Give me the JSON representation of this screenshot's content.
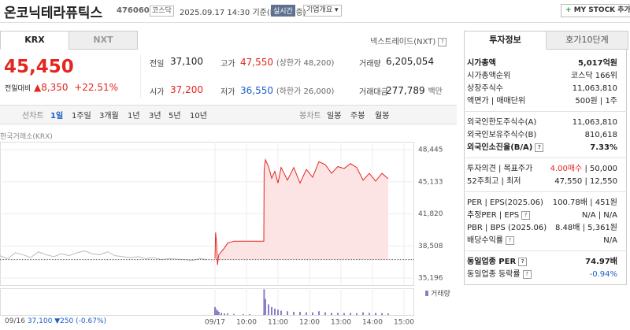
{
  "header": {
    "title": "온코닉테라퓨틱스",
    "code": "476060",
    "market": "코스닥",
    "timestamp": "2025.09.17 14:30",
    "basis": "기준(KRX 장중)",
    "realtime": "실시간",
    "company": "기업개요",
    "mystock": "MY STOCK 추가"
  },
  "market_tabs": [
    "KRX",
    "NXT"
  ],
  "nxt_link": "넥스트레이드(NXT)",
  "price": {
    "current": "45,450",
    "change_label": "전일대비",
    "change": "8,350",
    "rate": "+22.51%"
  },
  "stats": [
    {
      "label": "전일",
      "value": "37,100",
      "color": "plain"
    },
    {
      "label": "고가",
      "value": "47,550",
      "extra": "(상한가 48,200)",
      "color": "up"
    },
    {
      "label": "거래량",
      "value": "6,205,054",
      "color": "plain"
    },
    {
      "label": "시가",
      "value": "37,200",
      "color": "up"
    },
    {
      "label": "저가",
      "value": "36,550",
      "extra": "(하한가 26,000)",
      "color": "down"
    },
    {
      "label": "거래대금",
      "value": "277,789",
      "extra": "백만",
      "color": "plain"
    }
  ],
  "period_tabs": [
    "선차트",
    "1일",
    "1주일",
    "3개월",
    "1년",
    "3년",
    "5년",
    "10년"
  ],
  "candle_tabs": [
    "봉차트",
    "일봉",
    "주봉",
    "월봉"
  ],
  "chart_source": "한국거래소(KRX)",
  "prev_day": {
    "date": "09/16",
    "close": "37,100",
    "change": "250",
    "rate": "(-0.67%)"
  },
  "chart_data": {
    "type": "line",
    "ylim": [
      34465,
      49258
    ],
    "xlim": [
      2.175,
      15.3
    ],
    "yticks": [
      {
        "value": 48445,
        "label": "48,445"
      },
      {
        "value": 45133,
        "label": "45,133"
      },
      {
        "value": 41820,
        "label": "41,820"
      },
      {
        "value": 38508,
        "label": "38,508"
      },
      {
        "value": 35196,
        "label": "35,196"
      }
    ],
    "xticks": [
      {
        "value": 9,
        "label": "09/17"
      },
      {
        "value": 10,
        "label": "10:00"
      },
      {
        "value": 11,
        "label": "11:00"
      },
      {
        "value": 12,
        "label": "12:00"
      },
      {
        "value": 13,
        "label": "13:00"
      },
      {
        "value": 14,
        "label": "14:00"
      },
      {
        "value": 15,
        "label": "15:00"
      }
    ],
    "base_value": 37100,
    "prev_series": {
      "color": "#bbbbbb",
      "values": [
        37500,
        37200,
        37800,
        37600,
        37300,
        37900,
        37600,
        37400,
        37700,
        37500,
        37800,
        38000,
        37700,
        37600,
        37900,
        37500,
        37400,
        37300,
        37400,
        37200,
        37300,
        37100,
        37200,
        37150,
        37100,
        37000,
        37200,
        37100
      ]
    },
    "series": [
      {
        "color": "#e3261f",
        "fill": "#fde4e4",
        "x": [
          9,
          9.02,
          9.05,
          9.08,
          9.12,
          9.2,
          9.3,
          9.4,
          9.6,
          9.9,
          10.1,
          10.55,
          10.56,
          10.6,
          10.7,
          10.8,
          10.9,
          11,
          11.1,
          11.3,
          11.5,
          11.7,
          11.9,
          12.1,
          12.3,
          12.5,
          12.7,
          12.9,
          13.1,
          13.3,
          13.5,
          13.7,
          13.9,
          14.1,
          14.3,
          14.5
        ],
        "values": [
          37200,
          39900,
          38800,
          36550,
          37600,
          37900,
          38300,
          38800,
          39000,
          39000,
          39000,
          39000,
          46300,
          47400,
          46700,
          45500,
          46200,
          45000,
          46600,
          45300,
          46600,
          45000,
          46400,
          45600,
          47200,
          46900,
          46000,
          46700,
          46500,
          47000,
          46600,
          45300,
          46000,
          45200,
          46000,
          45450
        ]
      }
    ],
    "volume": {
      "name": "거래량",
      "color": "#8a7fc4",
      "ylim": [
        0,
        500000
      ],
      "values": [
        150000,
        120000,
        80000,
        90000,
        60000,
        40000,
        30000,
        30000,
        20000,
        15000,
        15000,
        20000,
        480000,
        300000,
        200000,
        150000,
        120000,
        100000,
        80000,
        70000,
        60000,
        60000,
        50000,
        50000,
        70000,
        50000,
        40000,
        40000,
        35000,
        40000,
        35000,
        50000,
        40000,
        40000,
        35000,
        30000
      ]
    }
  },
  "info_tabs": [
    "투자정보",
    "호가10단계"
  ],
  "info_groups": [
    [
      {
        "label": "시가총액",
        "values": [
          "5,017억원"
        ],
        "bold": true
      },
      {
        "label": "시가총액순위",
        "values": [
          "코스닥 166위"
        ]
      },
      {
        "label": "상장주식수",
        "values": [
          "11,063,810"
        ]
      },
      {
        "label": "액면가 | 매매단위",
        "values": [
          "500원",
          "1주"
        ]
      }
    ],
    [
      {
        "label": "외국인한도주식수(A)",
        "values": [
          "11,063,810"
        ]
      },
      {
        "label": "외국인보유주식수(B)",
        "values": [
          "810,618"
        ]
      },
      {
        "label": "외국인소진율(B/A)",
        "values": [
          "7.33%"
        ],
        "bold": true,
        "help": true
      }
    ],
    [
      {
        "label": "투자의견 | 목표주가",
        "values": [
          "4.00매수",
          "50,000"
        ],
        "colors": [
          "up",
          "plain"
        ]
      },
      {
        "label": "52주최고 | 최저",
        "values": [
          "47,550",
          "12,550"
        ]
      }
    ],
    [
      {
        "label": "PER | EPS(2025.06)",
        "values": [
          "100.78배",
          "451원"
        ]
      },
      {
        "label": "추정PER | EPS",
        "values": [
          "N/A",
          "N/A"
        ],
        "help": true
      },
      {
        "label": "PBR | BPS (2025.06)",
        "values": [
          "8.48배",
          "5,361원"
        ]
      },
      {
        "label": "배당수익률",
        "values": [
          "N/A"
        ],
        "help": true
      }
    ],
    [
      {
        "label": "동일업종 PER",
        "values": [
          "74.97배"
        ],
        "bold": true,
        "help": true
      },
      {
        "label": "동일업종 등락률",
        "values": [
          "-0.94%"
        ],
        "colors": [
          "down"
        ],
        "help": true
      }
    ]
  ]
}
